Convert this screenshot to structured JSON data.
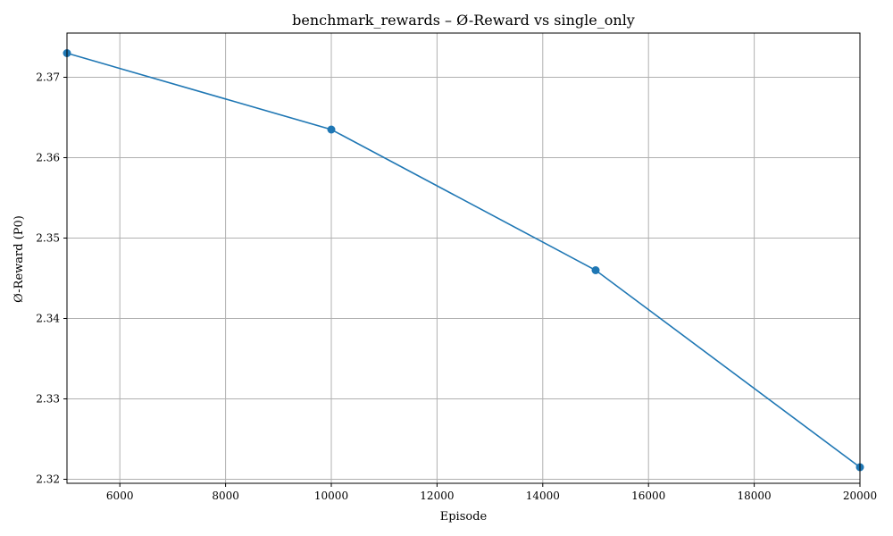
{
  "chart_data": {
    "type": "line",
    "title": "benchmark_rewards – Ø-Reward vs single_only",
    "xlabel": "Episode",
    "ylabel": "Ø-Reward (P0)",
    "xlim": [
      5000,
      20000
    ],
    "ylim": [
      2.3195,
      2.3755
    ],
    "x_ticks": [
      6000,
      8000,
      10000,
      12000,
      14000,
      16000,
      18000,
      20000
    ],
    "y_ticks": [
      2.32,
      2.33,
      2.34,
      2.35,
      2.36,
      2.37
    ],
    "grid": true,
    "series": [
      {
        "color": "#1f77b4",
        "marker": "circle",
        "x": [
          5000,
          10000,
          15000,
          20000
        ],
        "y": [
          2.373,
          2.3635,
          2.346,
          2.3215
        ]
      }
    ]
  }
}
